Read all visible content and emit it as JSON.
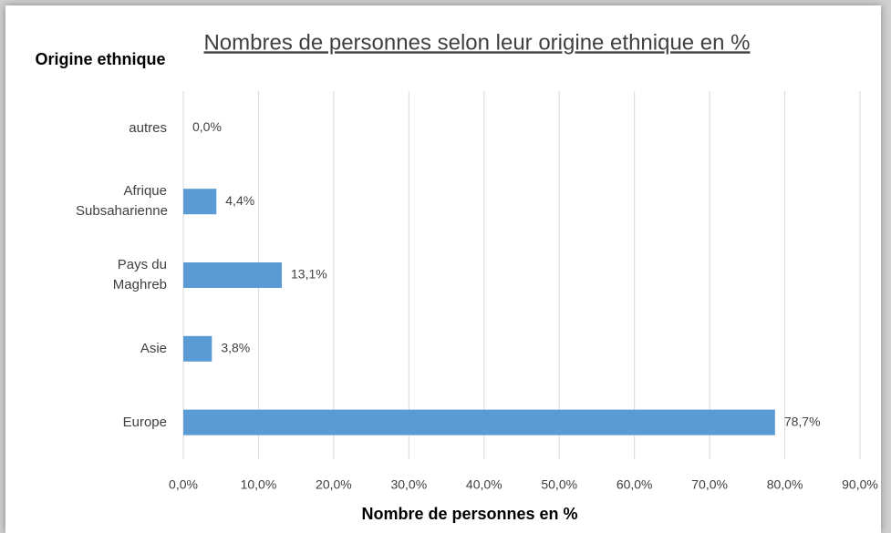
{
  "chart_data": {
    "type": "bar",
    "orientation": "horizontal",
    "title": "Nombres de personnes selon leur origine ethnique en %",
    "y_label": "Origine ethnique",
    "x_label": "Nombre de personnes en %",
    "categories": [
      "autres",
      "Afrique Subsaharienne",
      "Pays du Maghreb",
      "Asie",
      "Europe"
    ],
    "values": [
      0,
      4.4,
      13.1,
      3.8,
      78.7
    ],
    "value_labels": [
      "0,0%",
      "4,4%",
      "13,1%",
      "3,8%",
      "78,7%"
    ],
    "color": "#5b9bd5",
    "xlim": [
      0,
      90
    ],
    "xticks": [
      {
        "value": 0,
        "label": "0,0%"
      },
      {
        "value": 10,
        "label": "10,0%"
      },
      {
        "value": 20,
        "label": "20,0%"
      },
      {
        "value": 30,
        "label": "30,0%"
      },
      {
        "value": 40,
        "label": "40,0%"
      },
      {
        "value": 50,
        "label": "50,0%"
      },
      {
        "value": 60,
        "label": "60,0%"
      },
      {
        "value": 70,
        "label": "70,0%"
      },
      {
        "value": 80,
        "label": "80,0%"
      },
      {
        "value": 90,
        "label": "90,0%"
      }
    ],
    "grid": true
  }
}
